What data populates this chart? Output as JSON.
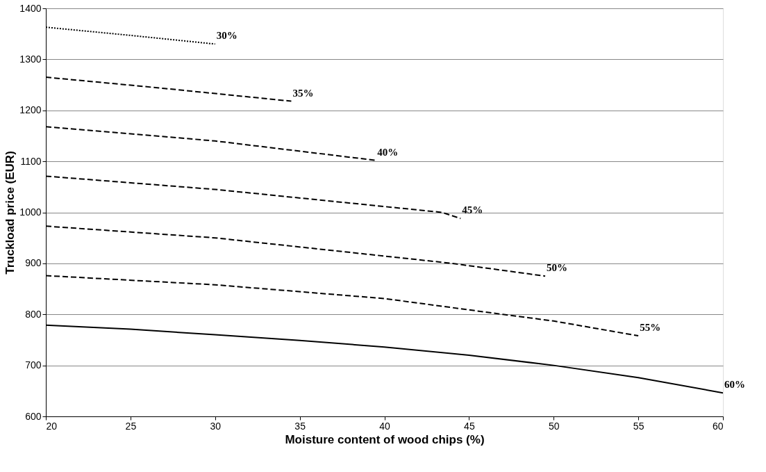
{
  "chart_data": {
    "type": "line",
    "xlabel": "Moisture content of wood chips (%)",
    "ylabel": "Truckload price (EUR)",
    "xlim": [
      20,
      60
    ],
    "xticks": [
      20,
      25,
      30,
      35,
      40,
      45,
      50,
      55,
      60
    ],
    "ylim": [
      600,
      1400
    ],
    "yticks": [
      600,
      700,
      800,
      900,
      1000,
      1100,
      1200,
      1300,
      1400
    ],
    "grid": "y",
    "marker": "none",
    "series": [
      {
        "name": "30%",
        "color": "#000000",
        "line_style": "dotted",
        "x": [
          20,
          25,
          30
        ],
        "values": [
          1363,
          1347,
          1330
        ]
      },
      {
        "name": "35%",
        "color": "#000000",
        "line_style": "dashed",
        "x": [
          20,
          27,
          34.5
        ],
        "values": [
          1265,
          1243,
          1218
        ]
      },
      {
        "name": "40%",
        "color": "#000000",
        "line_style": "dashed",
        "x": [
          20,
          30,
          39.5
        ],
        "values": [
          1168,
          1140,
          1102
        ]
      },
      {
        "name": "45%",
        "color": "#000000",
        "line_style": "dashed",
        "x": [
          20,
          30,
          43.4,
          44.5
        ],
        "values": [
          1071,
          1045,
          1000,
          988
        ]
      },
      {
        "name": "50%",
        "color": "#000000",
        "line_style": "dashed",
        "x": [
          20,
          30,
          44,
          49.5
        ],
        "values": [
          973,
          950,
          900,
          875
        ]
      },
      {
        "name": "55%",
        "color": "#000000",
        "line_style": "dashed",
        "x": [
          20,
          30,
          40,
          47,
          50,
          55
        ],
        "values": [
          876,
          858,
          831,
          800,
          787,
          758
        ]
      },
      {
        "name": "60%",
        "color": "#000000",
        "line_style": "solid",
        "x": [
          20,
          25,
          30,
          35,
          40,
          45,
          50,
          55,
          60
        ],
        "values": [
          779,
          771,
          760,
          749,
          736,
          720,
          700,
          676,
          646
        ]
      }
    ]
  }
}
